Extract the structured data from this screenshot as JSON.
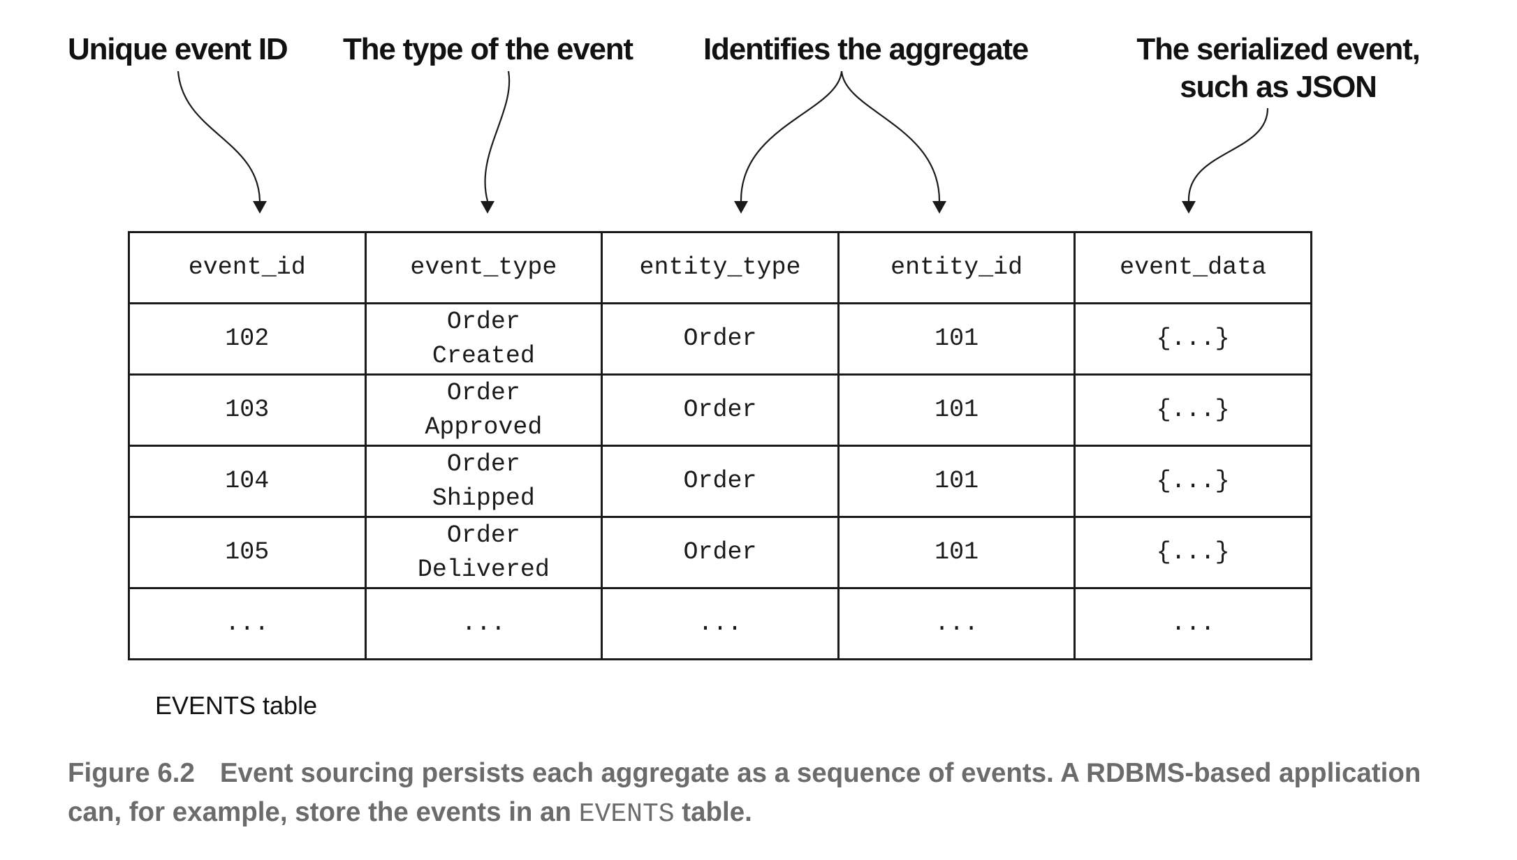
{
  "annotations": {
    "event_id": "Unique event ID",
    "event_type": "The type of the event",
    "aggregate": "Identifies the aggregate",
    "event_data_line1": "The serialized event,",
    "event_data_line2": "such as JSON"
  },
  "table": {
    "headers": [
      "event_id",
      "event_type",
      "entity_type",
      "entity_id",
      "event_data"
    ],
    "rows": [
      [
        "102",
        "Order\nCreated",
        "Order",
        "101",
        "{...}"
      ],
      [
        "103",
        "Order\nApproved",
        "Order",
        "101",
        "{...}"
      ],
      [
        "104",
        "Order\nShipped",
        "Order",
        "101",
        "{...}"
      ],
      [
        "105",
        "Order\nDelivered",
        "Order",
        "101",
        "{...}"
      ],
      [
        "...",
        "...",
        "...",
        "...",
        "..."
      ]
    ],
    "label": "EVENTS table"
  },
  "caption": {
    "figure_number": "Figure 6.2",
    "text_part1": "Event sourcing persists each aggregate as a sequence of events. A RDBMS-based application can, for example, store the events in an",
    "code": "EVENTS",
    "text_part2": "table."
  }
}
